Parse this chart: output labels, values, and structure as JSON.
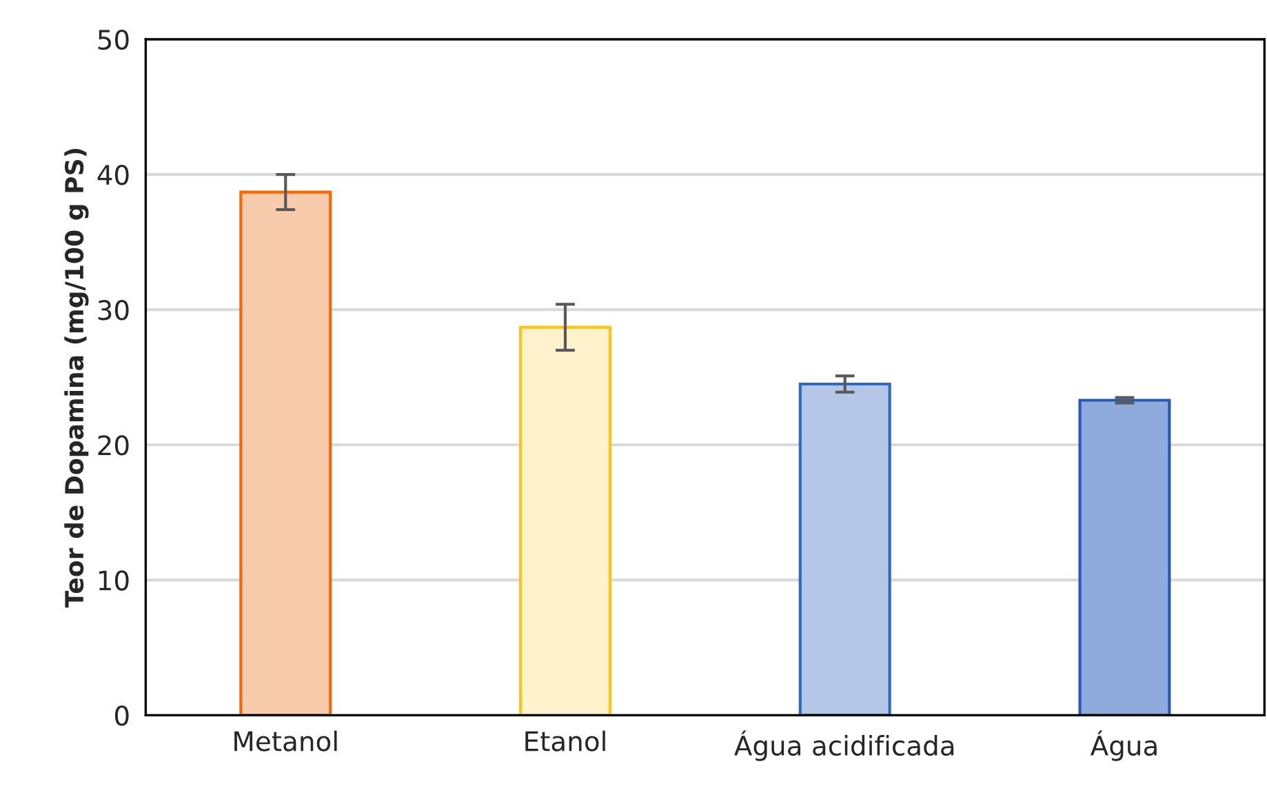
{
  "chart_data": {
    "type": "bar",
    "categories": [
      "Metanol",
      "Etanol",
      "Água acidificada",
      "Água"
    ],
    "values": [
      38.7,
      28.7,
      24.5,
      23.3
    ],
    "errors": [
      1.3,
      1.7,
      0.6,
      0.2
    ],
    "colors": [
      "#f8cbad",
      "#fff2cc",
      "#b4c7e7",
      "#8faadc"
    ],
    "ylabel": "Teor de Dopamina (mg/100 g PS)",
    "ylim": [
      0,
      50
    ],
    "yticks": [
      0,
      10,
      20,
      30,
      40,
      50
    ],
    "grid": "y"
  }
}
